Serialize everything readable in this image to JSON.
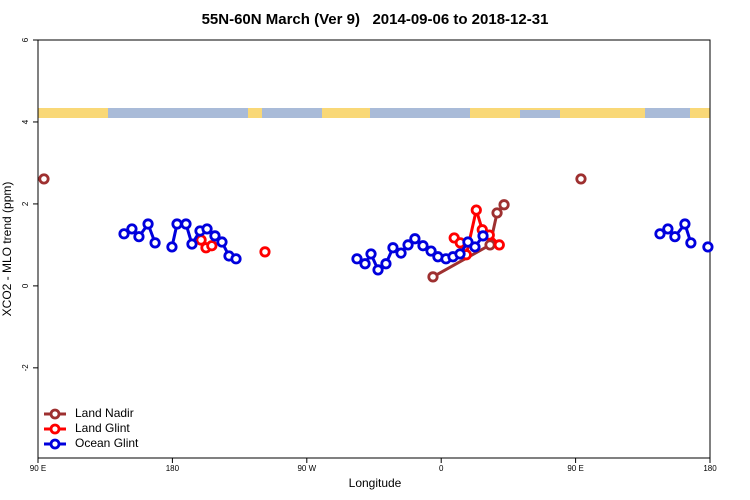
{
  "chart_data": {
    "type": "line",
    "title": "55N-60N March (Ver 9)   2014-09-06 to 2018-12-31",
    "xlabel": "Longitude",
    "ylabel": "XCO2 - MLO trend (ppm)",
    "xlim": [
      90,
      540
    ],
    "xticks": [
      {
        "value": 90,
        "label": "90 E"
      },
      180,
      {
        "value": 270,
        "label": "90 W"
      },
      {
        "value": 360,
        "label": "0"
      },
      {
        "value": 450,
        "label": "90 E"
      },
      {
        "value": 540,
        "label": "180"
      }
    ],
    "ylim": [
      -4.2,
      6
    ],
    "yticks": [
      -2,
      0,
      2,
      4,
      6
    ],
    "legend": "bottom-left",
    "series": [
      {
        "name": "Land Nadir",
        "color": "#9e3030",
        "x": [
          94,
          null,
          354.5,
          392.7,
          397.4,
          402.1,
          null,
          453.6
        ],
        "values": [
          2.61,
          null,
          0.22,
          1.0,
          1.78,
          1.98,
          null,
          2.61
        ]
      },
      {
        "name": "Land Glint",
        "color": "#ff0000",
        "x": [
          199.2,
          202.5,
          206.4,
          null,
          242.0,
          null,
          368.7,
          372.8,
          376.8,
          383.5,
          387.5,
          392.2,
          398.9
        ],
        "values": [
          1.12,
          0.93,
          0.98,
          null,
          0.83,
          null,
          1.17,
          1.05,
          0.76,
          1.85,
          1.37,
          1.24,
          1.0
        ]
      },
      {
        "name": "Ocean Glint",
        "color": "#0000dd",
        "x": [
          147.6,
          152.9,
          157.6,
          163.7,
          168.4,
          null,
          179.7,
          183.1,
          189.1,
          193.1,
          198.5,
          203.2,
          208.5,
          213.2,
          217.9,
          222.6,
          null,
          303.6,
          309.0,
          313.0,
          317.7,
          323.0,
          327.7,
          333.1,
          337.8,
          342.4,
          347.8,
          353.2,
          357.8,
          363.2,
          367.9,
          372.6,
          377.9,
          382.6,
          388.0,
          null,
          506.5,
          511.8,
          516.5,
          523.2,
          527.2,
          null,
          538.6
        ],
        "values": [
          1.27,
          1.39,
          1.2,
          1.51,
          1.05,
          null,
          0.95,
          1.51,
          1.51,
          1.02,
          1.34,
          1.39,
          1.22,
          1.07,
          0.73,
          0.66,
          null,
          0.66,
          0.54,
          0.78,
          0.39,
          0.54,
          0.93,
          0.8,
          1.0,
          1.15,
          0.98,
          0.85,
          0.71,
          0.66,
          0.71,
          0.78,
          1.07,
          0.95,
          1.22,
          null,
          1.27,
          1.39,
          1.2,
          1.51,
          1.05,
          null,
          0.95
        ]
      }
    ]
  }
}
